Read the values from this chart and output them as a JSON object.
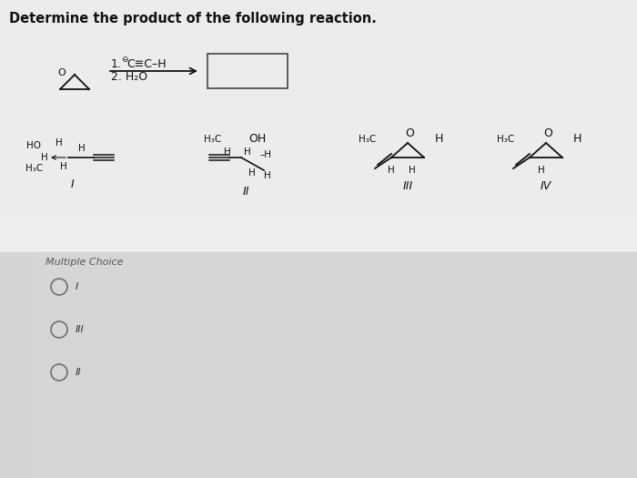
{
  "title": "Determine the product of the following reaction.",
  "bg_top": "#eeeeee",
  "bg_bottom": "#d8d8d8",
  "text_color": "#111111",
  "gray_text": "#555555",
  "multiple_choice_label": "Multiple Choice",
  "choices": [
    "I",
    "III",
    "II"
  ],
  "title_fontsize": 10.5,
  "body_fontsize": 9,
  "small_fontsize": 7.5,
  "roman_fontsize": 9
}
